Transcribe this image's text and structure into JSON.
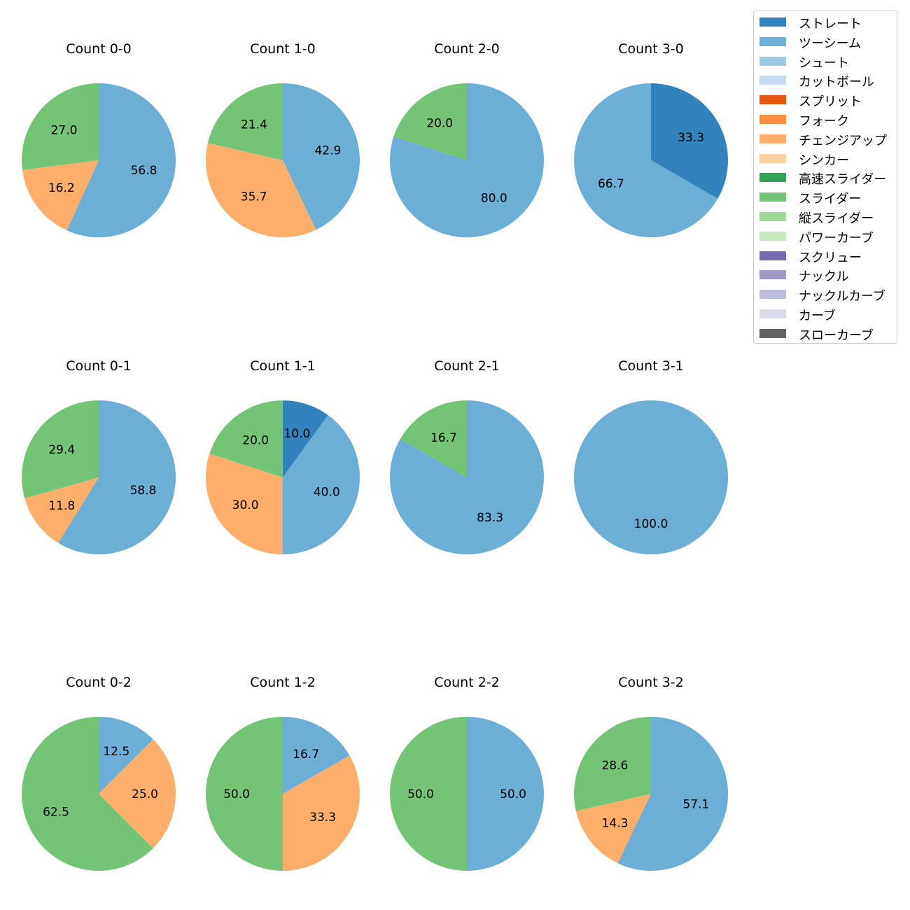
{
  "chart_data": {
    "type": "pie",
    "value_format": "percent, one decimal",
    "pitch_types": [
      {
        "name": "ストレート",
        "color": "#3182bd"
      },
      {
        "name": "ツーシーム",
        "color": "#6baed6"
      },
      {
        "name": "シュート",
        "color": "#9ecae1"
      },
      {
        "name": "カットボール",
        "color": "#c6dbef"
      },
      {
        "name": "スプリット",
        "color": "#e6550d"
      },
      {
        "name": "フォーク",
        "color": "#fd8d3c"
      },
      {
        "name": "チェンジアップ",
        "color": "#fdae6b"
      },
      {
        "name": "シンカー",
        "color": "#fdd0a2"
      },
      {
        "name": "高速スライダー",
        "color": "#31a354"
      },
      {
        "name": "スライダー",
        "color": "#74c476"
      },
      {
        "name": "縦スライダー",
        "color": "#a1d99b"
      },
      {
        "name": "パワーカーブ",
        "color": "#c7e9c0"
      },
      {
        "name": "スクリュー",
        "color": "#756bb1"
      },
      {
        "name": "ナックル",
        "color": "#9e9ac8"
      },
      {
        "name": "ナックルカーブ",
        "color": "#bcbddc"
      },
      {
        "name": "カーブ",
        "color": "#dadaeb"
      },
      {
        "name": "スローカーブ",
        "color": "#636363"
      }
    ],
    "pies": [
      {
        "title": "Count 0-0",
        "slices": [
          {
            "type": "ツーシーム",
            "value": 56.8
          },
          {
            "type": "チェンジアップ",
            "value": 16.2
          },
          {
            "type": "スライダー",
            "value": 27.0
          }
        ]
      },
      {
        "title": "Count 1-0",
        "slices": [
          {
            "type": "ツーシーム",
            "value": 42.9
          },
          {
            "type": "チェンジアップ",
            "value": 35.7
          },
          {
            "type": "スライダー",
            "value": 21.4
          }
        ]
      },
      {
        "title": "Count 2-0",
        "slices": [
          {
            "type": "ツーシーム",
            "value": 80.0
          },
          {
            "type": "スライダー",
            "value": 20.0
          }
        ]
      },
      {
        "title": "Count 3-0",
        "slices": [
          {
            "type": "ストレート",
            "value": 33.3
          },
          {
            "type": "ツーシーム",
            "value": 66.7
          }
        ]
      },
      {
        "title": "Count 0-1",
        "slices": [
          {
            "type": "ツーシーム",
            "value": 58.8
          },
          {
            "type": "チェンジアップ",
            "value": 11.8
          },
          {
            "type": "スライダー",
            "value": 29.4
          }
        ]
      },
      {
        "title": "Count 1-1",
        "slices": [
          {
            "type": "ストレート",
            "value": 10.0
          },
          {
            "type": "ツーシーム",
            "value": 40.0
          },
          {
            "type": "チェンジアップ",
            "value": 30.0
          },
          {
            "type": "スライダー",
            "value": 20.0
          }
        ]
      },
      {
        "title": "Count 2-1",
        "slices": [
          {
            "type": "ツーシーム",
            "value": 83.3
          },
          {
            "type": "スライダー",
            "value": 16.7
          }
        ]
      },
      {
        "title": "Count 3-1",
        "slices": [
          {
            "type": "ツーシーム",
            "value": 100.0
          }
        ]
      },
      {
        "title": "Count 0-2",
        "slices": [
          {
            "type": "ツーシーム",
            "value": 12.5
          },
          {
            "type": "チェンジアップ",
            "value": 25.0
          },
          {
            "type": "スライダー",
            "value": 62.5
          }
        ]
      },
      {
        "title": "Count 1-2",
        "slices": [
          {
            "type": "ツーシーム",
            "value": 16.7
          },
          {
            "type": "チェンジアップ",
            "value": 33.3
          },
          {
            "type": "スライダー",
            "value": 50.0
          }
        ]
      },
      {
        "title": "Count 2-2",
        "slices": [
          {
            "type": "ツーシーム",
            "value": 50.0
          },
          {
            "type": "スライダー",
            "value": 50.0
          }
        ]
      },
      {
        "title": "Count 3-2",
        "slices": [
          {
            "type": "ツーシーム",
            "value": 57.1
          },
          {
            "type": "チェンジアップ",
            "value": 14.3
          },
          {
            "type": "スライダー",
            "value": 28.6
          }
        ]
      }
    ],
    "legend": {
      "placement": "top-right"
    }
  }
}
